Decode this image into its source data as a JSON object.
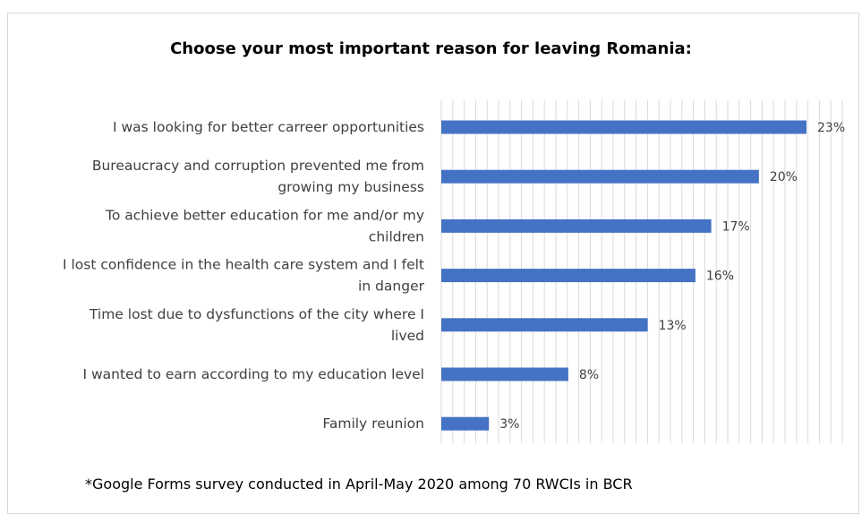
{
  "chart_data": {
    "type": "bar",
    "orientation": "horizontal",
    "title": "Choose your most important reason for leaving Romania:",
    "categories": [
      [
        "I was looking for better carreer opportunities"
      ],
      [
        "Bureaucracy and corruption prevented me from",
        "growing my business"
      ],
      [
        "To achieve better education for me and/or my",
        "children"
      ],
      [
        "I lost confidence in the health care system and I felt",
        "in danger"
      ],
      [
        "Time lost due to dysfunctions of the city where I",
        "lived"
      ],
      [
        "I wanted to earn according to my education level"
      ],
      [
        "Family reunion"
      ]
    ],
    "values": [
      23,
      20,
      17,
      16,
      13,
      8,
      3
    ],
    "data_labels": [
      "23%",
      "20%",
      "17%",
      "16%",
      "13%",
      "8%",
      "3%"
    ],
    "xlim": [
      0,
      30
    ],
    "grid": "vertical",
    "bar_color": "#4472c4",
    "gridline_color": "#d9d9d9",
    "label_color": "#404040"
  },
  "footnote": "*Google Forms survey conducted in April-May 2020 among 70 RWCIs in BCR"
}
